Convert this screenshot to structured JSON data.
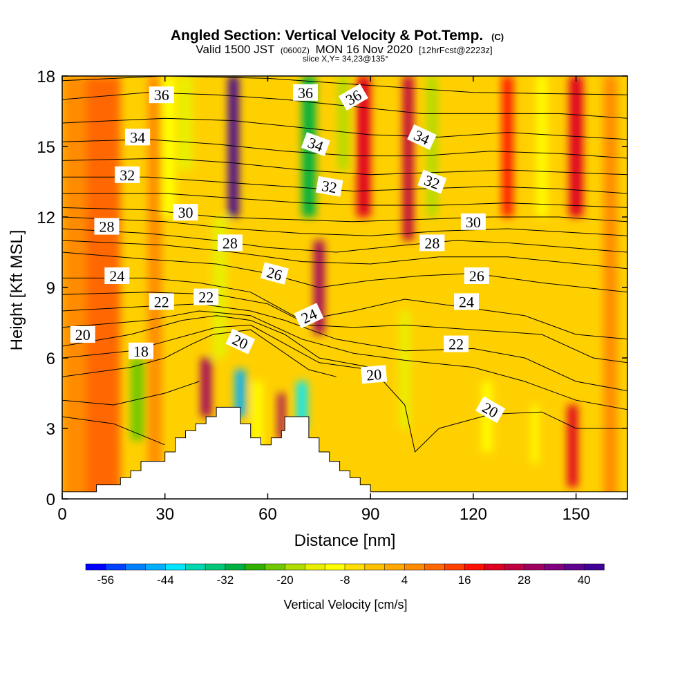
{
  "chart_data": {
    "type": "heatmap",
    "title": "Angled Section: Vertical Velocity & Pot.Temp.",
    "title_suffix": "(C)",
    "subtitle_prefix": "Valid 1500 JST",
    "subtitle_utc": "(0600Z)",
    "subtitle_date": "MON 16 Nov 2020",
    "subtitle_fcst": "[12hrFcst@2223z]",
    "slice_label": "slice X,Y= 34,23@135°",
    "xlabel": "Distance [nm]",
    "ylabel": "Height [Kft MSL]",
    "xlim": [
      0,
      165
    ],
    "ylim": [
      0,
      18
    ],
    "x_ticks": [
      "0",
      "30",
      "60",
      "90",
      "120",
      "150"
    ],
    "y_ticks": [
      "0",
      "3",
      "6",
      "9",
      "12",
      "15",
      "18"
    ],
    "colorbar": {
      "label": "Vertical Velocity [cm/s]",
      "tick_labels": [
        "-56",
        "-44",
        "-32",
        "-20",
        "-8",
        "4",
        "16",
        "28",
        "40"
      ],
      "min": -60,
      "max": 44,
      "colors": [
        "#0000ff",
        "#0040ff",
        "#0080ff",
        "#00b0ff",
        "#00e8ff",
        "#00d8b0",
        "#00c878",
        "#00b040",
        "#30b000",
        "#70c800",
        "#b0dc00",
        "#e8f000",
        "#ffff00",
        "#ffe000",
        "#ffc000",
        "#ffa800",
        "#ff8c00",
        "#ff6800",
        "#ff4000",
        "#ff1000",
        "#e00020",
        "#c00040",
        "#a00060",
        "#800080",
        "#600090",
        "#400098"
      ]
    },
    "velocity_columns": [
      {
        "x": 4,
        "w": 8,
        "v": 4,
        "zmin": 0,
        "zmax": 18
      },
      {
        "x": 12,
        "w": 10,
        "v": 10,
        "zmin": 0,
        "zmax": 18
      },
      {
        "x": 22,
        "w": 4,
        "v": -22,
        "zmin": 2.5,
        "zmax": 6
      },
      {
        "x": 27,
        "w": 4,
        "v": 6,
        "zmin": 0,
        "zmax": 18
      },
      {
        "x": 31,
        "w": 4,
        "v": -12,
        "zmin": 12,
        "zmax": 18
      },
      {
        "x": 36,
        "w": 4,
        "v": -16,
        "zmin": 14,
        "zmax": 18
      },
      {
        "x": 42,
        "w": 3,
        "v": 28,
        "zmin": 3.5,
        "zmax": 6
      },
      {
        "x": 46,
        "w": 4,
        "v": -14,
        "zmin": 6,
        "zmax": 12
      },
      {
        "x": 50,
        "w": 3,
        "v": 40,
        "zmin": 12,
        "zmax": 18
      },
      {
        "x": 52,
        "w": 3,
        "v": -48,
        "zmin": 3.5,
        "zmax": 5.5
      },
      {
        "x": 57,
        "w": 3,
        "v": -10,
        "zmin": 2,
        "zmax": 5
      },
      {
        "x": 64,
        "w": 2,
        "v": 28,
        "zmin": 2.5,
        "zmax": 4.5
      },
      {
        "x": 70,
        "w": 3,
        "v": -44,
        "zmin": 3,
        "zmax": 5
      },
      {
        "x": 72,
        "w": 4,
        "v": -32,
        "zmin": 12,
        "zmax": 18
      },
      {
        "x": 75,
        "w": 3,
        "v": 30,
        "zmin": 7,
        "zmax": 11
      },
      {
        "x": 82,
        "w": 3,
        "v": -20,
        "zmin": 14,
        "zmax": 18
      },
      {
        "x": 88,
        "w": 4,
        "v": 22,
        "zmin": 12,
        "zmax": 18
      },
      {
        "x": 100,
        "w": 3,
        "v": -16,
        "zmin": 3,
        "zmax": 8
      },
      {
        "x": 101,
        "w": 3,
        "v": 24,
        "zmin": 11,
        "zmax": 18
      },
      {
        "x": 108,
        "w": 3,
        "v": -20,
        "zmin": 12,
        "zmax": 18
      },
      {
        "x": 124,
        "w": 3,
        "v": -12,
        "zmin": 2,
        "zmax": 5
      },
      {
        "x": 130,
        "w": 3,
        "v": 18,
        "zmin": 12,
        "zmax": 18
      },
      {
        "x": 138,
        "w": 2,
        "v": -12,
        "zmin": 1.5,
        "zmax": 4
      },
      {
        "x": 140,
        "w": 3,
        "v": -10,
        "zmin": 12,
        "zmax": 18
      },
      {
        "x": 149,
        "w": 3,
        "v": 20,
        "zmin": 0.5,
        "zmax": 4
      },
      {
        "x": 150,
        "w": 4,
        "v": 20,
        "zmin": 12,
        "zmax": 18
      },
      {
        "x": 160,
        "w": 4,
        "v": 4,
        "zmin": 0,
        "zmax": 18
      }
    ],
    "terrain": [
      [
        0,
        0.3
      ],
      [
        10,
        0.3
      ],
      [
        10,
        0.6
      ],
      [
        17,
        0.6
      ],
      [
        17,
        0.9
      ],
      [
        20,
        0.9
      ],
      [
        20,
        1.2
      ],
      [
        23,
        1.2
      ],
      [
        23,
        1.6
      ],
      [
        30,
        1.6
      ],
      [
        30,
        2.0
      ],
      [
        33,
        2.0
      ],
      [
        33,
        2.6
      ],
      [
        36,
        2.6
      ],
      [
        36,
        2.9
      ],
      [
        39,
        2.9
      ],
      [
        39,
        3.2
      ],
      [
        42,
        3.2
      ],
      [
        42,
        3.5
      ],
      [
        45,
        3.5
      ],
      [
        45,
        3.9
      ],
      [
        52,
        3.9
      ],
      [
        52,
        3.2
      ],
      [
        55,
        3.2
      ],
      [
        55,
        2.6
      ],
      [
        58,
        2.6
      ],
      [
        58,
        2.3
      ],
      [
        61,
        2.3
      ],
      [
        61,
        2.6
      ],
      [
        64,
        2.6
      ],
      [
        64,
        2.9
      ],
      [
        65,
        2.9
      ],
      [
        65,
        3.5
      ],
      [
        72,
        3.5
      ],
      [
        72,
        2.6
      ],
      [
        75,
        2.6
      ],
      [
        75,
        2.0
      ],
      [
        78,
        2.0
      ],
      [
        78,
        1.6
      ],
      [
        81,
        1.6
      ],
      [
        81,
        1.2
      ],
      [
        84,
        1.2
      ],
      [
        84,
        0.9
      ],
      [
        87,
        0.9
      ],
      [
        87,
        0.6
      ],
      [
        90,
        0.6
      ],
      [
        90,
        0.3
      ],
      [
        165,
        0.3
      ]
    ],
    "theta_contours": [
      {
        "value": 18,
        "pts": [
          [
            0,
            5.2
          ],
          [
            20,
            5.6
          ],
          [
            30,
            6.0
          ],
          [
            38,
            6.6
          ],
          [
            44,
            7.0
          ],
          [
            55,
            7.2
          ],
          [
            65,
            6.2
          ],
          [
            72,
            5.5
          ],
          [
            80,
            5.2
          ]
        ]
      },
      {
        "value": 20,
        "pts": [
          [
            0,
            6.5
          ],
          [
            20,
            7.0
          ],
          [
            35,
            7.6
          ],
          [
            45,
            7.8
          ],
          [
            55,
            7.6
          ],
          [
            65,
            7.0
          ],
          [
            75,
            6.0
          ],
          [
            90,
            5.6
          ],
          [
            100,
            4.0
          ],
          [
            103,
            2.0
          ],
          [
            110,
            3.0
          ],
          [
            125,
            3.6
          ],
          [
            140,
            3.7
          ],
          [
            150,
            3.0
          ],
          [
            165,
            3.0
          ]
        ]
      },
      {
        "value": 22,
        "pts": [
          [
            0,
            8.0
          ],
          [
            25,
            8.2
          ],
          [
            40,
            8.3
          ],
          [
            55,
            8.0
          ],
          [
            65,
            7.6
          ],
          [
            80,
            6.8
          ],
          [
            100,
            6.3
          ],
          [
            120,
            6.4
          ],
          [
            135,
            6.0
          ],
          [
            150,
            5.0
          ],
          [
            165,
            4.6
          ]
        ]
      },
      {
        "value": 24,
        "pts": [
          [
            0,
            9.4
          ],
          [
            25,
            9.4
          ],
          [
            40,
            9.2
          ],
          [
            55,
            8.8
          ],
          [
            70,
            7.6
          ],
          [
            85,
            8.0
          ],
          [
            100,
            8.5
          ],
          [
            120,
            8.1
          ],
          [
            135,
            7.8
          ],
          [
            150,
            7.0
          ],
          [
            165,
            6.8
          ]
        ]
      },
      {
        "value": 26,
        "pts": [
          [
            0,
            10.5
          ],
          [
            25,
            10.2
          ],
          [
            45,
            10.0
          ],
          [
            60,
            9.6
          ],
          [
            75,
            9.0
          ],
          [
            90,
            9.3
          ],
          [
            105,
            9.5
          ],
          [
            120,
            9.6
          ],
          [
            140,
            9.2
          ],
          [
            165,
            8.8
          ]
        ]
      },
      {
        "value": 28,
        "pts": [
          [
            0,
            11.5
          ],
          [
            25,
            11.3
          ],
          [
            45,
            11.0
          ],
          [
            60,
            10.7
          ],
          [
            80,
            10.5
          ],
          [
            100,
            10.8
          ],
          [
            115,
            11.0
          ],
          [
            130,
            10.9
          ],
          [
            165,
            10.5
          ]
        ]
      },
      {
        "value": 30,
        "pts": [
          [
            0,
            12.4
          ],
          [
            25,
            12.3
          ],
          [
            45,
            12.0
          ],
          [
            65,
            11.9
          ],
          [
            85,
            11.8
          ],
          [
            105,
            11.9
          ],
          [
            125,
            12.0
          ],
          [
            145,
            12.0
          ],
          [
            165,
            11.8
          ]
        ]
      },
      {
        "value": 32,
        "pts": [
          [
            0,
            13.7
          ],
          [
            25,
            13.7
          ],
          [
            45,
            13.5
          ],
          [
            65,
            13.3
          ],
          [
            85,
            13.1
          ],
          [
            105,
            13.2
          ],
          [
            125,
            13.3
          ],
          [
            145,
            13.2
          ],
          [
            165,
            13.0
          ]
        ]
      },
      {
        "value": 34,
        "pts": [
          [
            0,
            15.2
          ],
          [
            25,
            15.3
          ],
          [
            45,
            15.1
          ],
          [
            65,
            14.8
          ],
          [
            85,
            14.6
          ],
          [
            105,
            14.6
          ],
          [
            125,
            14.8
          ],
          [
            145,
            14.7
          ],
          [
            165,
            14.5
          ]
        ]
      },
      {
        "value": 36,
        "pts": [
          [
            0,
            17.0
          ],
          [
            25,
            17.3
          ],
          [
            45,
            17.2
          ],
          [
            65,
            17.0
          ],
          [
            85,
            16.7
          ],
          [
            105,
            16.4
          ],
          [
            125,
            16.4
          ],
          [
            145,
            16.4
          ],
          [
            165,
            16.2
          ]
        ]
      }
    ],
    "extra_contours": [
      [
        [
          0,
          6.0
        ],
        [
          20,
          6.3
        ],
        [
          35,
          6.9
        ],
        [
          45,
          7.3
        ],
        [
          55,
          7.4
        ],
        [
          65,
          6.6
        ],
        [
          75,
          5.8
        ],
        [
          90,
          5.5
        ]
      ],
      [
        [
          0,
          7.3
        ],
        [
          25,
          7.6
        ],
        [
          40,
          8.0
        ],
        [
          55,
          7.8
        ],
        [
          70,
          6.8
        ],
        [
          85,
          6.2
        ],
        [
          100,
          5.9
        ],
        [
          120,
          5.6
        ],
        [
          135,
          5.0
        ],
        [
          150,
          4.2
        ],
        [
          165,
          3.8
        ]
      ],
      [
        [
          0,
          8.7
        ],
        [
          25,
          8.8
        ],
        [
          45,
          8.7
        ],
        [
          60,
          8.3
        ],
        [
          72,
          7.4
        ],
        [
          85,
          7.3
        ],
        [
          100,
          7.4
        ],
        [
          120,
          7.2
        ],
        [
          140,
          7.0
        ],
        [
          155,
          6.0
        ],
        [
          165,
          5.8
        ]
      ],
      [
        [
          0,
          11.0
        ],
        [
          30,
          10.8
        ],
        [
          50,
          10.5
        ],
        [
          70,
          10.1
        ],
        [
          90,
          10.0
        ],
        [
          110,
          10.3
        ],
        [
          130,
          10.3
        ],
        [
          165,
          9.8
        ]
      ],
      [
        [
          0,
          12.0
        ],
        [
          30,
          11.8
        ],
        [
          50,
          11.5
        ],
        [
          70,
          11.3
        ],
        [
          90,
          11.2
        ],
        [
          110,
          11.4
        ],
        [
          130,
          11.5
        ],
        [
          165,
          11.2
        ]
      ],
      [
        [
          0,
          13.0
        ],
        [
          30,
          13.0
        ],
        [
          50,
          12.8
        ],
        [
          70,
          12.6
        ],
        [
          90,
          12.5
        ],
        [
          110,
          12.5
        ],
        [
          130,
          12.6
        ],
        [
          165,
          12.4
        ]
      ],
      [
        [
          0,
          14.4
        ],
        [
          30,
          14.5
        ],
        [
          50,
          14.3
        ],
        [
          70,
          14.0
        ],
        [
          90,
          13.8
        ],
        [
          110,
          13.9
        ],
        [
          130,
          14.0
        ],
        [
          165,
          13.8
        ]
      ],
      [
        [
          0,
          16.0
        ],
        [
          30,
          16.2
        ],
        [
          50,
          16.1
        ],
        [
          70,
          15.8
        ],
        [
          90,
          15.5
        ],
        [
          110,
          15.4
        ],
        [
          130,
          15.6
        ],
        [
          165,
          15.3
        ]
      ],
      [
        [
          0,
          17.8
        ],
        [
          30,
          18.0
        ],
        [
          60,
          17.9
        ],
        [
          90,
          17.6
        ],
        [
          120,
          17.3
        ],
        [
          165,
          17.2
        ]
      ],
      [
        [
          0,
          3.5
        ],
        [
          15,
          3.2
        ],
        [
          25,
          2.6
        ],
        [
          30,
          2.3
        ]
      ],
      [
        [
          0,
          4.2
        ],
        [
          15,
          4.0
        ],
        [
          30,
          4.5
        ],
        [
          40,
          5.0
        ]
      ]
    ],
    "contour_labels": [
      {
        "text": "36",
        "x": 29,
        "y": 17.2,
        "rot": 0
      },
      {
        "text": "36",
        "x": 71,
        "y": 17.3,
        "rot": 0
      },
      {
        "text": "36",
        "x": 85,
        "y": 17.1,
        "rot": -30
      },
      {
        "text": "34",
        "x": 22,
        "y": 15.4,
        "rot": 0
      },
      {
        "text": "34",
        "x": 74,
        "y": 15.1,
        "rot": 20
      },
      {
        "text": "34",
        "x": 105,
        "y": 15.4,
        "rot": 25
      },
      {
        "text": "32",
        "x": 19,
        "y": 13.8,
        "rot": 0
      },
      {
        "text": "32",
        "x": 78,
        "y": 13.3,
        "rot": 10
      },
      {
        "text": "32",
        "x": 108,
        "y": 13.5,
        "rot": 20
      },
      {
        "text": "30",
        "x": 36,
        "y": 12.2,
        "rot": 0
      },
      {
        "text": "30",
        "x": 120,
        "y": 11.8,
        "rot": 0
      },
      {
        "text": "28",
        "x": 13,
        "y": 11.6,
        "rot": 0
      },
      {
        "text": "28",
        "x": 49,
        "y": 10.9,
        "rot": 0
      },
      {
        "text": "28",
        "x": 108,
        "y": 10.9,
        "rot": 0
      },
      {
        "text": "26",
        "x": 62,
        "y": 9.6,
        "rot": 15
      },
      {
        "text": "26",
        "x": 121,
        "y": 9.5,
        "rot": 0
      },
      {
        "text": "24",
        "x": 16,
        "y": 9.5,
        "rot": 0
      },
      {
        "text": "24",
        "x": 72,
        "y": 7.8,
        "rot": -25
      },
      {
        "text": "24",
        "x": 118,
        "y": 8.4,
        "rot": 0
      },
      {
        "text": "22",
        "x": 29,
        "y": 8.4,
        "rot": 0
      },
      {
        "text": "22",
        "x": 42,
        "y": 8.6,
        "rot": 0
      },
      {
        "text": "22",
        "x": 115,
        "y": 6.6,
        "rot": 0
      },
      {
        "text": "20",
        "x": 6,
        "y": 7.0,
        "rot": 0
      },
      {
        "text": "20",
        "x": 52,
        "y": 6.7,
        "rot": 25
      },
      {
        "text": "20",
        "x": 91,
        "y": 5.3,
        "rot": -5
      },
      {
        "text": "20",
        "x": 125,
        "y": 3.8,
        "rot": 30
      },
      {
        "text": "18",
        "x": 23,
        "y": 6.3,
        "rot": 0
      }
    ],
    "grid": false
  }
}
